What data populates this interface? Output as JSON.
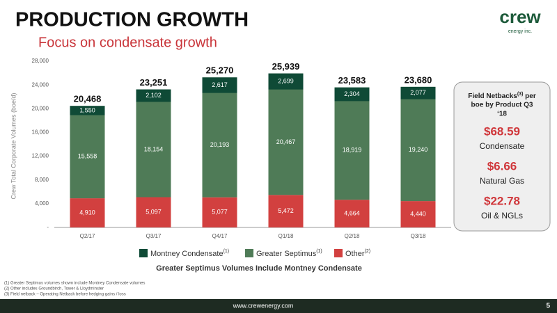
{
  "header": {
    "title": "PRODUCTION GROWTH",
    "subtitle": "Focus on condensate growth",
    "logo": "crew",
    "logo_sub": "energy inc."
  },
  "chart_data": {
    "type": "bar",
    "stacked": true,
    "y_label": "Crew Total Corporate Volumes (boe/d)",
    "categories": [
      "Q2/17",
      "Q3/17",
      "Q4/17",
      "Q1/18",
      "Q2/18",
      "Q3/18"
    ],
    "series": [
      {
        "name": "Montney Condensate",
        "legend_note": "(1)",
        "color": "#0f4a36",
        "within": "Greater Septimus",
        "values": [
          1550,
          2102,
          2617,
          2699,
          2304,
          2077
        ],
        "value_labels": [
          "1,550",
          "2,102",
          "2,617",
          "2,699",
          "2,304",
          "2,077"
        ]
      },
      {
        "name": "Greater Septimus",
        "legend_note": "(1)",
        "color": "#4f7b57",
        "values": [
          15558,
          18154,
          20193,
          20467,
          18919,
          19240
        ],
        "value_labels": [
          "15,558",
          "18,154",
          "20,193",
          "20,467",
          "18,919",
          "19,240"
        ]
      },
      {
        "name": "Other",
        "legend_note": "(2)",
        "color": "#d2403f",
        "values": [
          4910,
          5097,
          5077,
          5472,
          4664,
          4440
        ],
        "value_labels": [
          "4,910",
          "5,097",
          "5,077",
          "5,472",
          "4,664",
          "4,440"
        ]
      }
    ],
    "totals": {
      "values": [
        20468,
        23251,
        25270,
        25939,
        23583,
        23680
      ],
      "value_labels": [
        "20,468",
        "23,251",
        "25,270",
        "25,939",
        "23,583",
        "23,680"
      ]
    },
    "ylim": [
      0,
      28000
    ],
    "yticks": [
      {
        "value": 0,
        "label": "-"
      },
      {
        "value": 4000,
        "label": "4,000"
      },
      {
        "value": 8000,
        "label": "8,000"
      },
      {
        "value": 12000,
        "label": "12,000"
      },
      {
        "value": 16000,
        "label": "16,000"
      },
      {
        "value": 20000,
        "label": "20,000"
      },
      {
        "value": 24000,
        "label": "24,000"
      },
      {
        "value": 28000,
        "label": "28,000"
      }
    ],
    "grid": false,
    "caption": "Greater Septimus Volumes Include Montney Condensate"
  },
  "panel": {
    "title_parts": [
      "Field Netbacks",
      "(3)",
      " per",
      "boe by Product Q3",
      "‘18"
    ],
    "items": [
      {
        "value": "$68.59",
        "label": "Condensate"
      },
      {
        "value": "$6.66",
        "label": "Natural Gas"
      },
      {
        "value": "$22.78",
        "label": "Oil & NGLs"
      }
    ]
  },
  "footnotes": [
    "(1) Greater Septimus volumes shown include Montney Condensate volumes",
    "(2) Other includes Groundbirch, Tower & Lloydminster",
    "(3) Field netback – Operating Netback before hedging gains / loss"
  ],
  "footer": {
    "url": "www.crewenergy.com",
    "page": "5"
  }
}
